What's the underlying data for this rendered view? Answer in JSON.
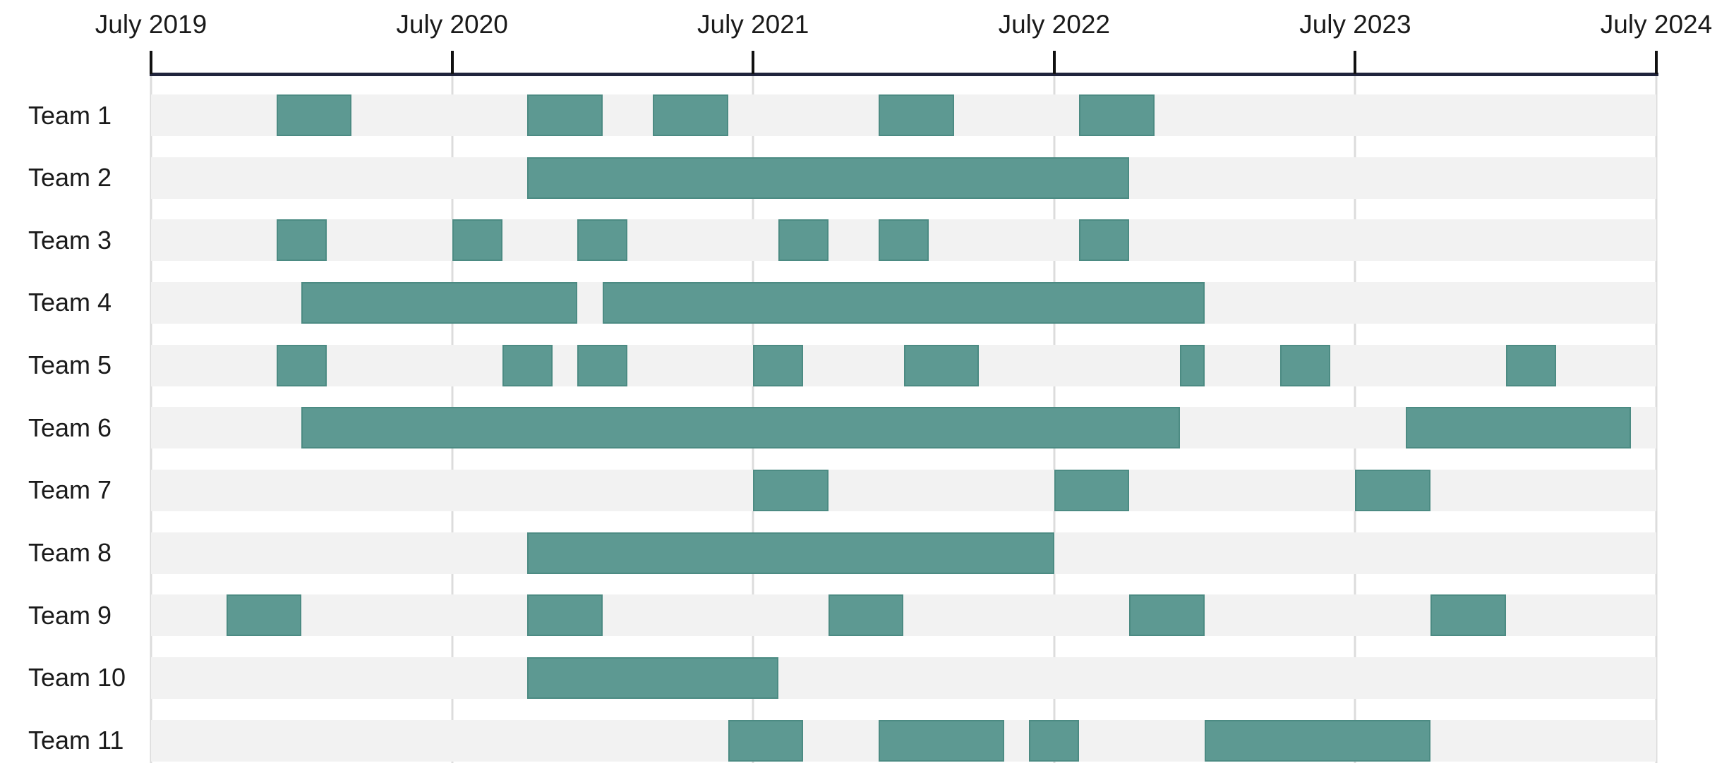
{
  "chart_data": {
    "type": "gantt",
    "x_axis": {
      "start": "2019-07",
      "end": "2024-07",
      "tick_interval_months": 12,
      "tick_labels": [
        "July 2019",
        "July 2020",
        "July 2021",
        "July 2022",
        "July 2023",
        "July 2024"
      ]
    },
    "legend": null,
    "grid": "vertical-yearly",
    "teams": [
      {
        "label": "Team 1",
        "bars": [
          {
            "start": "2019-12",
            "end": "2020-03"
          },
          {
            "start": "2020-10",
            "end": "2021-01"
          },
          {
            "start": "2021-03",
            "end": "2021-06"
          },
          {
            "start": "2021-12",
            "end": "2022-03"
          },
          {
            "start": "2022-08",
            "end": "2022-11"
          }
        ]
      },
      {
        "label": "Team 2",
        "bars": [
          {
            "start": "2020-10",
            "end": "2022-10"
          }
        ]
      },
      {
        "label": "Team 3",
        "bars": [
          {
            "start": "2019-12",
            "end": "2020-02"
          },
          {
            "start": "2020-07",
            "end": "2020-09"
          },
          {
            "start": "2020-12",
            "end": "2021-02"
          },
          {
            "start": "2021-08",
            "end": "2021-10"
          },
          {
            "start": "2021-12",
            "end": "2022-02"
          },
          {
            "start": "2022-08",
            "end": "2022-10"
          }
        ]
      },
      {
        "label": "Team 4",
        "bars": [
          {
            "start": "2020-01",
            "end": "2020-12"
          },
          {
            "start": "2021-01",
            "end": "2023-01"
          }
        ]
      },
      {
        "label": "Team 5",
        "bars": [
          {
            "start": "2019-12",
            "end": "2020-02"
          },
          {
            "start": "2020-09",
            "end": "2020-11"
          },
          {
            "start": "2020-12",
            "end": "2021-02"
          },
          {
            "start": "2021-07",
            "end": "2021-09"
          },
          {
            "start": "2022-01",
            "end": "2022-04"
          },
          {
            "start": "2022-12",
            "end": "2023-01"
          },
          {
            "start": "2023-04",
            "end": "2023-06"
          },
          {
            "start": "2024-01",
            "end": "2024-03"
          }
        ]
      },
      {
        "label": "Team 6",
        "bars": [
          {
            "start": "2020-01",
            "end": "2022-12"
          },
          {
            "start": "2023-09",
            "end": "2024-06"
          }
        ]
      },
      {
        "label": "Team 7",
        "bars": [
          {
            "start": "2021-07",
            "end": "2021-10"
          },
          {
            "start": "2022-07",
            "end": "2022-10"
          },
          {
            "start": "2023-07",
            "end": "2023-10"
          }
        ]
      },
      {
        "label": "Team 8",
        "bars": [
          {
            "start": "2020-10",
            "end": "2022-07"
          }
        ]
      },
      {
        "label": "Team 9",
        "bars": [
          {
            "start": "2019-10",
            "end": "2020-01"
          },
          {
            "start": "2020-10",
            "end": "2021-01"
          },
          {
            "start": "2021-10",
            "end": "2022-01"
          },
          {
            "start": "2022-10",
            "end": "2023-01"
          },
          {
            "start": "2023-10",
            "end": "2024-01"
          }
        ]
      },
      {
        "label": "Team 10",
        "bars": [
          {
            "start": "2020-10",
            "end": "2021-08"
          }
        ]
      },
      {
        "label": "Team 11",
        "bars": [
          {
            "start": "2021-06",
            "end": "2021-09"
          },
          {
            "start": "2021-12",
            "end": "2022-05"
          },
          {
            "start": "2022-06",
            "end": "2022-08"
          },
          {
            "start": "2023-01",
            "end": "2023-10"
          }
        ]
      }
    ]
  },
  "colors": {
    "bar_fill": "#5d9992",
    "bar_border": "#4c8b83",
    "row_stripe": "#f2f2f2",
    "gridline": "#dcdcdc",
    "axis_line": "#20243c",
    "tick_mark": "#111111",
    "text": "#1a1a1a",
    "background": "#ffffff"
  }
}
